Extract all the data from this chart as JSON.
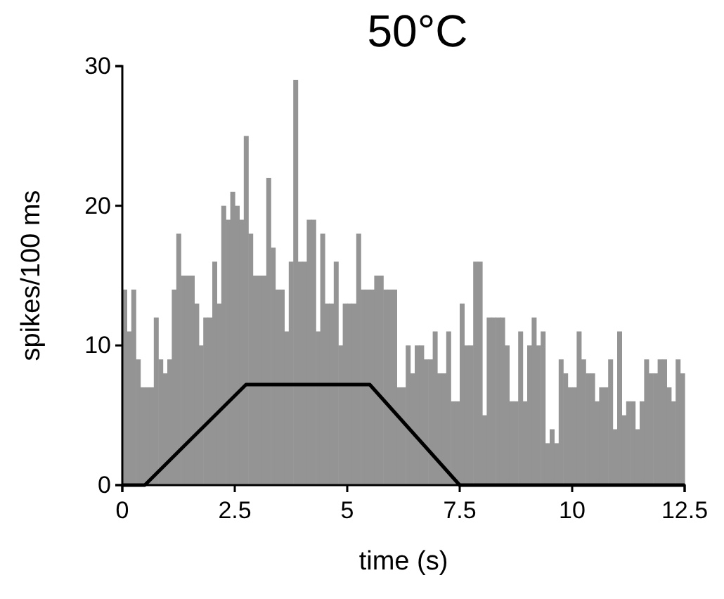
{
  "chart_data": {
    "type": "histogram",
    "title": "50°C",
    "xlabel": "time (s)",
    "ylabel": "spikes/100 ms",
    "xlim": [
      0,
      12.5
    ],
    "xticks": [
      0,
      2.5,
      5,
      7.5,
      10,
      12.5
    ],
    "ylim": [
      0,
      30
    ],
    "yticks": [
      0,
      10,
      20,
      30
    ],
    "grid": false,
    "series": [
      {
        "color": "#949494",
        "bins": [
          0,
          0.1,
          0.2,
          0.3,
          0.4,
          0.5,
          0.6,
          0.7,
          0.8,
          0.9,
          1,
          1.1,
          1.2,
          1.3,
          1.4,
          1.5,
          1.6,
          1.7,
          1.8,
          1.9,
          2,
          2.1,
          2.2,
          2.3,
          2.4,
          2.5,
          2.6,
          2.7,
          2.8,
          2.9,
          3,
          3.1,
          3.2,
          3.3,
          3.4,
          3.5,
          3.6,
          3.7,
          3.8,
          3.9,
          4,
          4.1,
          4.2,
          4.3,
          4.4,
          4.5,
          4.6,
          4.7,
          4.8,
          4.9,
          5,
          5.1,
          5.2,
          5.3,
          5.4,
          5.5,
          5.6,
          5.7,
          5.8,
          5.9,
          6,
          6.1,
          6.2,
          6.3,
          6.4,
          6.5,
          6.6,
          6.7,
          6.8,
          6.9,
          7,
          7.1,
          7.2,
          7.3,
          7.4,
          7.5,
          7.6,
          7.7,
          7.8,
          7.9,
          8,
          8.1,
          8.2,
          8.3,
          8.4,
          8.5,
          8.6,
          8.7,
          8.8,
          8.9,
          9,
          9.1,
          9.2,
          9.3,
          9.4,
          9.5,
          9.6,
          9.7,
          9.8,
          9.9,
          10,
          10.1,
          10.2,
          10.3,
          10.4,
          10.5,
          10.6,
          10.7,
          10.8,
          10.9,
          11,
          11.1,
          11.2,
          11.3,
          11.4,
          11.5,
          11.6,
          11.7,
          11.8,
          11.9,
          12,
          12.1,
          12.2,
          12.3,
          12.4,
          12.5
        ],
        "values": [
          14,
          11,
          14,
          9,
          7,
          7,
          7,
          12,
          9,
          8,
          9,
          14,
          18,
          15,
          15,
          15,
          13,
          10,
          12,
          12,
          16,
          13,
          20,
          19,
          21,
          20,
          19,
          25,
          18,
          15,
          15,
          15,
          22,
          17,
          14,
          14,
          11,
          16,
          29,
          16,
          16,
          19,
          19,
          11,
          18,
          13,
          13,
          16,
          10,
          13,
          13,
          13,
          18,
          14,
          14,
          14,
          15,
          15,
          14,
          14,
          14,
          7,
          7,
          10,
          8,
          10,
          10,
          9,
          9,
          11,
          8,
          8,
          11,
          6,
          6,
          13,
          10,
          10,
          16,
          16,
          5,
          12,
          12,
          12,
          12,
          10,
          6,
          6,
          11,
          6,
          10,
          12,
          10,
          11,
          3,
          4,
          3,
          9,
          8,
          7,
          7,
          11,
          9,
          8,
          8,
          6,
          7,
          7,
          9,
          4,
          11,
          5,
          6,
          6,
          4,
          6,
          9,
          8,
          8,
          9,
          9,
          7,
          6,
          9,
          8
        ]
      },
      {
        "type": "line",
        "color": "#000000",
        "line_style": "solid",
        "marker": "none",
        "x": [
          0,
          0.5,
          2.75,
          5.5,
          7.5,
          12.5
        ],
        "values": [
          0,
          0,
          7.2,
          7.2,
          0,
          0
        ]
      }
    ]
  }
}
